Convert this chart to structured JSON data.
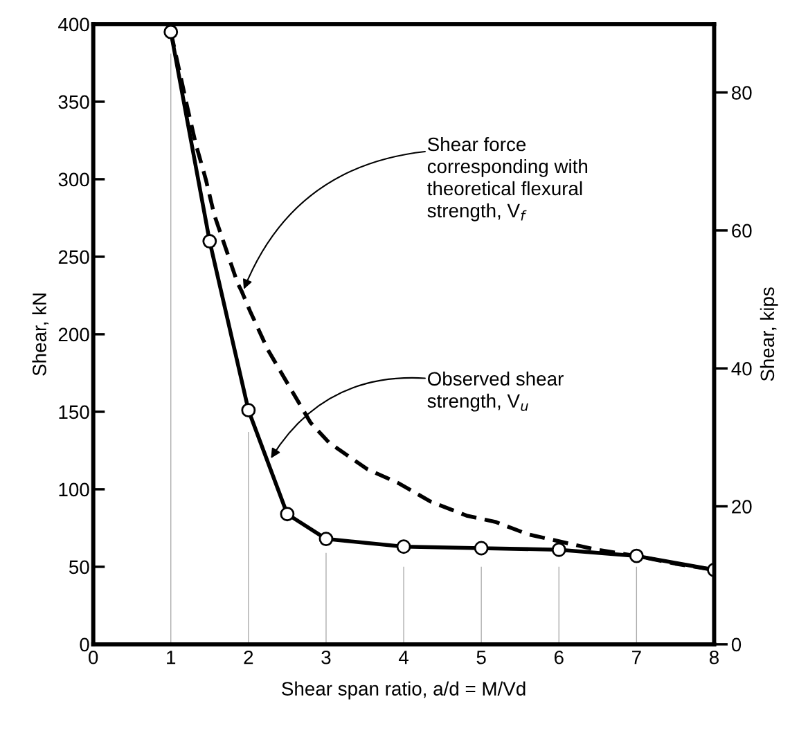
{
  "chart_data": {
    "type": "line",
    "xlabel": "Shear span ratio, a/d = M/Vd",
    "ylabel": "Shear, kN",
    "y2label": "Shear, kips",
    "xlim": [
      0,
      8
    ],
    "xticks": [
      0,
      1,
      2,
      3,
      4,
      5,
      6,
      7,
      8
    ],
    "ylim": [
      0,
      400
    ],
    "yticks": [
      0,
      50,
      100,
      150,
      200,
      250,
      300,
      350,
      400
    ],
    "y2lim": [
      0,
      89.9
    ],
    "y2ticks": [
      0,
      20,
      40,
      60,
      80
    ],
    "grid": false,
    "legend": false,
    "series": [
      {
        "type": "bar",
        "color": "#aaaaaa",
        "x": [
          1,
          2,
          3,
          4,
          5,
          6,
          7
        ],
        "values": [
          381,
          137,
          59,
          50,
          50,
          50,
          50
        ]
      },
      {
        "color": "#000000",
        "line_style": "dashed",
        "marker": "none",
        "x": [
          1,
          1.21,
          1.32,
          1.45,
          1.56,
          1.71,
          1.86,
          1.91,
          2.02,
          2.25,
          2.53,
          2.8,
          3.04,
          3.53,
          3.93,
          4.35,
          4.81,
          5.18,
          5.6,
          6.04,
          6.49,
          7.0,
          7.5,
          8
        ],
        "values": [
          395,
          347,
          323,
          300,
          277,
          255,
          233,
          228,
          215,
          190,
          166,
          143,
          130,
          113,
          104,
          92,
          83,
          79,
          71,
          66,
          61,
          57,
          52,
          48
        ]
      },
      {
        "color": "#000000",
        "line_style": "solid",
        "marker": "circle",
        "x": [
          1,
          1.5,
          2,
          2.5,
          3,
          4,
          5,
          6,
          7,
          8
        ],
        "values": [
          395,
          260,
          151,
          84,
          68,
          63,
          62,
          61,
          57,
          48
        ]
      }
    ],
    "annotations": [
      {
        "text": "Shear force\ncorresponding with\ntheoretical flexural\nstrength, V$_{f}$",
        "x": 1.94,
        "y": 229
      },
      {
        "text": "Observed shear\nstrength, V$_{u}$",
        "x": 2.29,
        "y": 120
      }
    ]
  }
}
